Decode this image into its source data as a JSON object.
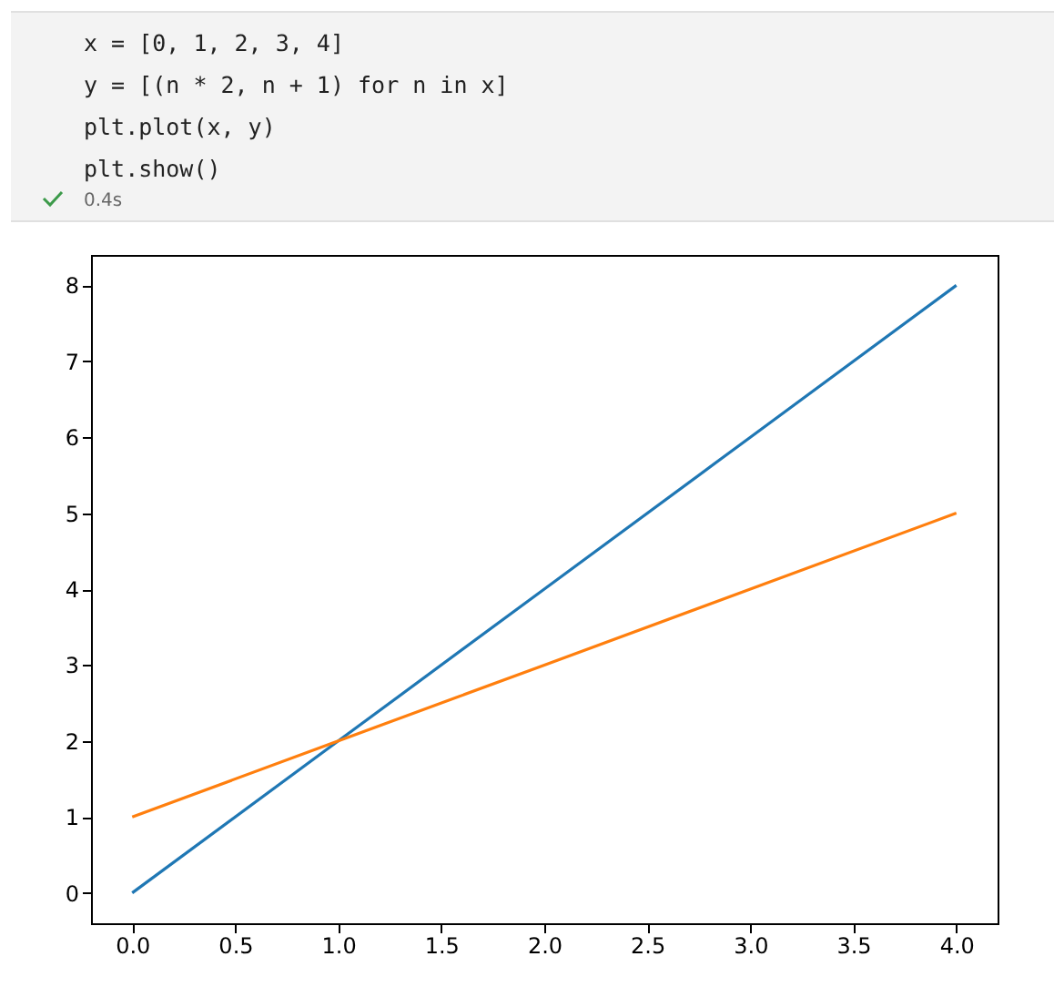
{
  "chart_data": {
    "type": "line",
    "annotations": [
      "x = [0, 1, 2, 3, 4]",
      "y = [(n * 2, n + 1) for n in x]",
      "plt.plot(x, y)",
      "plt.show()",
      "0.4s"
    ],
    "x": [
      0,
      1,
      2,
      3,
      4
    ],
    "series": [
      {
        "color": "#1f77b4",
        "values": [
          0,
          2,
          4,
          6,
          8
        ]
      },
      {
        "color": "#ff7f0e",
        "values": [
          1,
          2,
          3,
          4,
          5
        ]
      }
    ],
    "xlim": [
      -0.2,
      4.2
    ],
    "xticks": [
      {
        "value": 0,
        "label": "0.0"
      },
      {
        "value": 0.5,
        "label": "0.5"
      },
      {
        "value": 1,
        "label": "1.0"
      },
      {
        "value": 1.5,
        "label": "1.5"
      },
      {
        "value": 2,
        "label": "2.0"
      },
      {
        "value": 2.5,
        "label": "2.5"
      },
      {
        "value": 3,
        "label": "3.0"
      },
      {
        "value": 3.5,
        "label": "3.5"
      },
      {
        "value": 4,
        "label": "4.0"
      }
    ],
    "ylim": [
      -0.4,
      8.4
    ],
    "yticks": [
      0,
      1,
      2,
      3,
      4,
      5,
      6,
      7,
      8
    ],
    "grid": false,
    "marker": "none",
    "line_style": "solid"
  }
}
